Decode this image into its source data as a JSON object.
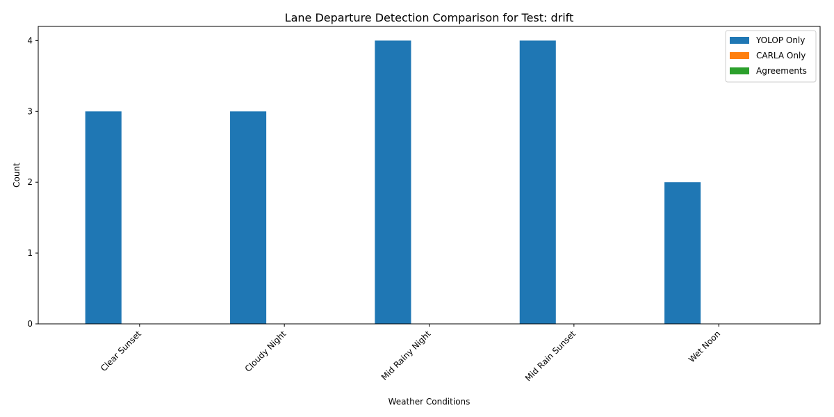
{
  "chart_data": {
    "type": "bar",
    "title": "Lane Departure Detection Comparison for Test: drift",
    "xlabel": "Weather Conditions",
    "ylabel": "Count",
    "categories": [
      "Clear Sunset",
      "Cloudy Night",
      "Mid Rainy Night",
      "Mid Rain Sunset",
      "Wet Noon"
    ],
    "series": [
      {
        "name": "YOLOP Only",
        "values": [
          3,
          3,
          4,
          4,
          2
        ],
        "color": "#1f77b4"
      },
      {
        "name": "CARLA Only",
        "values": [
          0,
          0,
          0,
          0,
          0
        ],
        "color": "#ff7f0e"
      },
      {
        "name": "Agreements",
        "values": [
          0,
          0,
          0,
          0,
          0
        ],
        "color": "#2ca02c"
      }
    ],
    "ylim": [
      0,
      4.2
    ],
    "yticks": [
      "0",
      "1",
      "2",
      "3",
      "4"
    ],
    "legend": "top-right",
    "grid": false
  }
}
